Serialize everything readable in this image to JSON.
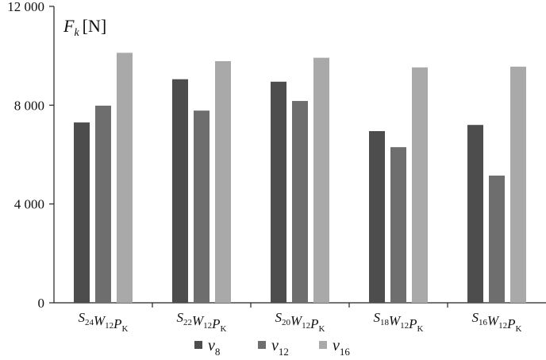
{
  "chart_data": {
    "type": "bar",
    "title": "",
    "ylabel": {
      "symbol": "F",
      "subscript": "k",
      "unit": "[N]"
    },
    "xlabel": "",
    "ylim": [
      0,
      12000
    ],
    "yticks": [
      0,
      4000,
      8000,
      12000
    ],
    "ytick_labels": [
      "0",
      "4 000",
      "8 000",
      "12 000"
    ],
    "grid": false,
    "legend_position": "bottom",
    "categories": [
      {
        "label": "S24W12PK",
        "parts": [
          [
            "S",
            "24"
          ],
          [
            "W",
            "12"
          ],
          [
            "P",
            "K"
          ]
        ]
      },
      {
        "label": "S22W12PK",
        "parts": [
          [
            "S",
            "22"
          ],
          [
            "W",
            "12"
          ],
          [
            "P",
            "K"
          ]
        ]
      },
      {
        "label": "S20W12PK",
        "parts": [
          [
            "S",
            "20"
          ],
          [
            "W",
            "12"
          ],
          [
            "P",
            "K"
          ]
        ]
      },
      {
        "label": "S18W12PK",
        "parts": [
          [
            "S",
            "18"
          ],
          [
            "W",
            "12"
          ],
          [
            "P",
            "K"
          ]
        ]
      },
      {
        "label": "S16W12PK",
        "parts": [
          [
            "S",
            "16"
          ],
          [
            "W",
            "12"
          ],
          [
            "P",
            "K"
          ]
        ]
      }
    ],
    "series": [
      {
        "name": "v8",
        "symbol": "v",
        "subscript": "8",
        "color": "#4d4d4d",
        "values": [
          7300,
          9050,
          8950,
          6950,
          7200
        ]
      },
      {
        "name": "v12",
        "symbol": "v",
        "subscript": "12",
        "color": "#6e6e6e",
        "values": [
          7980,
          7780,
          8170,
          6300,
          5150
        ]
      },
      {
        "name": "v16",
        "symbol": "v",
        "subscript": "16",
        "color": "#a9a9a9",
        "values": [
          10120,
          9780,
          9920,
          9530,
          9560
        ]
      }
    ]
  }
}
